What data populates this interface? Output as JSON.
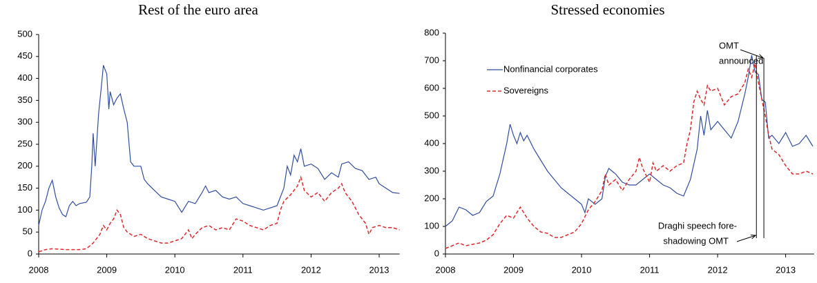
{
  "chart_data": [
    {
      "type": "line",
      "title": "Rest of the euro area",
      "xlim": [
        2008,
        2013.3
      ],
      "xticks": [
        2008,
        2009,
        2010,
        2011,
        2012,
        2013
      ],
      "ylim": [
        0,
        500
      ],
      "yticks": [
        0,
        50,
        100,
        150,
        200,
        250,
        300,
        350,
        400,
        450,
        500
      ],
      "series": [
        {
          "color": "#2f4d9e",
          "dash": false,
          "x": [
            2008.0,
            2008.05,
            2008.1,
            2008.15,
            2008.2,
            2008.25,
            2008.3,
            2008.35,
            2008.4,
            2008.45,
            2008.5,
            2008.55,
            2008.6,
            2008.7,
            2008.75,
            2008.78,
            2008.8,
            2008.83,
            2008.88,
            2008.92,
            2008.95,
            2009.0,
            2009.03,
            2009.05,
            2009.1,
            2009.15,
            2009.2,
            2009.25,
            2009.3,
            2009.35,
            2009.4,
            2009.5,
            2009.55,
            2009.6,
            2009.7,
            2009.8,
            2009.9,
            2010.0,
            2010.1,
            2010.2,
            2010.3,
            2010.4,
            2010.45,
            2010.5,
            2010.6,
            2010.7,
            2010.8,
            2010.9,
            2011.0,
            2011.1,
            2011.2,
            2011.3,
            2011.4,
            2011.5,
            2011.6,
            2011.65,
            2011.7,
            2011.75,
            2011.8,
            2011.85,
            2011.9,
            2012.0,
            2012.1,
            2012.2,
            2012.3,
            2012.4,
            2012.45,
            2012.55,
            2012.65,
            2012.75,
            2012.85,
            2012.95,
            2013.0,
            2013.1,
            2013.2,
            2013.3
          ],
          "values": [
            65,
            100,
            120,
            150,
            168,
            130,
            105,
            90,
            85,
            110,
            120,
            110,
            115,
            118,
            130,
            200,
            275,
            200,
            320,
            380,
            430,
            410,
            330,
            370,
            340,
            355,
            365,
            330,
            300,
            210,
            200,
            200,
            170,
            160,
            145,
            130,
            125,
            120,
            95,
            120,
            115,
            140,
            155,
            140,
            145,
            130,
            125,
            130,
            115,
            110,
            105,
            100,
            105,
            110,
            150,
            200,
            180,
            225,
            210,
            240,
            200,
            205,
            195,
            170,
            185,
            175,
            205,
            210,
            195,
            190,
            170,
            175,
            160,
            150,
            140,
            138
          ]
        },
        {
          "color": "#e0262a",
          "dash": true,
          "x": [
            2008.0,
            2008.1,
            2008.2,
            2008.4,
            2008.6,
            2008.7,
            2008.8,
            2008.9,
            2008.95,
            2009.0,
            2009.05,
            2009.1,
            2009.15,
            2009.2,
            2009.25,
            2009.3,
            2009.4,
            2009.5,
            2009.6,
            2009.7,
            2009.8,
            2009.9,
            2010.0,
            2010.1,
            2010.2,
            2010.25,
            2010.3,
            2010.4,
            2010.5,
            2010.6,
            2010.7,
            2010.8,
            2010.9,
            2011.0,
            2011.1,
            2011.2,
            2011.3,
            2011.4,
            2011.5,
            2011.55,
            2011.6,
            2011.7,
            2011.8,
            2011.85,
            2011.9,
            2012.0,
            2012.1,
            2012.2,
            2012.3,
            2012.4,
            2012.45,
            2012.5,
            2012.6,
            2012.7,
            2012.8,
            2012.85,
            2012.9,
            2013.0,
            2013.1,
            2013.2,
            2013.3
          ],
          "values": [
            5,
            10,
            12,
            10,
            10,
            12,
            25,
            45,
            65,
            55,
            70,
            80,
            100,
            90,
            60,
            50,
            40,
            45,
            35,
            30,
            25,
            25,
            30,
            35,
            55,
            35,
            45,
            60,
            65,
            55,
            60,
            55,
            80,
            75,
            65,
            60,
            55,
            65,
            70,
            100,
            120,
            135,
            155,
            175,
            145,
            130,
            140,
            120,
            140,
            150,
            160,
            140,
            120,
            90,
            70,
            45,
            60,
            65,
            60,
            60,
            55
          ]
        }
      ]
    },
    {
      "type": "line",
      "title": "Stressed economies",
      "xlim": [
        2008,
        2013.42
      ],
      "xticks": [
        2008,
        2009,
        2010,
        2011,
        2012,
        2013
      ],
      "ylim": [
        0,
        800
      ],
      "yticks": [
        0,
        100,
        200,
        300,
        400,
        500,
        600,
        700,
        800
      ],
      "legend": "upper left",
      "series": [
        {
          "name": "Nonfinancial corporates",
          "color": "#2f4d9e",
          "dash": false,
          "x": [
            2008.0,
            2008.1,
            2008.2,
            2008.3,
            2008.4,
            2008.5,
            2008.6,
            2008.7,
            2008.8,
            2008.9,
            2008.95,
            2009.0,
            2009.05,
            2009.1,
            2009.15,
            2009.2,
            2009.3,
            2009.4,
            2009.5,
            2009.6,
            2009.7,
            2009.8,
            2009.9,
            2010.0,
            2010.05,
            2010.1,
            2010.2,
            2010.3,
            2010.35,
            2010.4,
            2010.5,
            2010.6,
            2010.7,
            2010.8,
            2010.9,
            2011.0,
            2011.1,
            2011.2,
            2011.3,
            2011.4,
            2011.5,
            2011.6,
            2011.7,
            2011.75,
            2011.8,
            2011.85,
            2011.9,
            2012.0,
            2012.1,
            2012.2,
            2012.3,
            2012.4,
            2012.45,
            2012.5,
            2012.55,
            2012.6,
            2012.65,
            2012.7,
            2012.75,
            2012.8,
            2012.9,
            2013.0,
            2013.1,
            2013.2,
            2013.3,
            2013.4
          ],
          "values": [
            100,
            120,
            170,
            160,
            140,
            150,
            190,
            210,
            290,
            400,
            470,
            430,
            400,
            440,
            410,
            430,
            380,
            340,
            300,
            270,
            240,
            220,
            200,
            180,
            150,
            200,
            180,
            200,
            280,
            310,
            290,
            260,
            250,
            250,
            270,
            290,
            270,
            250,
            240,
            220,
            210,
            270,
            380,
            500,
            430,
            520,
            450,
            480,
            450,
            420,
            480,
            580,
            640,
            720,
            660,
            650,
            560,
            550,
            420,
            430,
            400,
            440,
            390,
            400,
            430,
            390
          ]
        },
        {
          "name": "Sovereigns",
          "color": "#e0262a",
          "dash": true,
          "x": [
            2008.0,
            2008.1,
            2008.2,
            2008.3,
            2008.4,
            2008.5,
            2008.6,
            2008.7,
            2008.8,
            2008.9,
            2009.0,
            2009.1,
            2009.15,
            2009.2,
            2009.3,
            2009.4,
            2009.5,
            2009.6,
            2009.7,
            2009.8,
            2009.9,
            2010.0,
            2010.1,
            2010.2,
            2010.3,
            2010.35,
            2010.4,
            2010.5,
            2010.6,
            2010.7,
            2010.8,
            2010.85,
            2010.9,
            2011.0,
            2011.05,
            2011.1,
            2011.2,
            2011.3,
            2011.4,
            2011.5,
            2011.55,
            2011.6,
            2011.65,
            2011.7,
            2011.75,
            2011.8,
            2011.85,
            2011.9,
            2012.0,
            2012.1,
            2012.2,
            2012.3,
            2012.4,
            2012.45,
            2012.5,
            2012.55,
            2012.6,
            2012.65,
            2012.7,
            2012.75,
            2012.8,
            2012.9,
            2013.0,
            2013.1,
            2013.2,
            2013.3,
            2013.4
          ],
          "values": [
            20,
            30,
            40,
            30,
            35,
            40,
            50,
            70,
            110,
            140,
            130,
            170,
            150,
            130,
            100,
            80,
            75,
            60,
            60,
            70,
            80,
            110,
            160,
            190,
            230,
            290,
            250,
            270,
            230,
            270,
            300,
            350,
            310,
            260,
            330,
            300,
            320,
            300,
            320,
            330,
            400,
            450,
            550,
            590,
            560,
            540,
            610,
            590,
            600,
            540,
            570,
            580,
            620,
            670,
            640,
            690,
            620,
            560,
            500,
            430,
            380,
            360,
            320,
            290,
            290,
            300,
            290
          ]
        }
      ],
      "annotations": [
        {
          "lines": [
            "OMT",
            "announced"
          ],
          "x": 2012.68
        },
        {
          "lines": [
            "Draghi speech fore-",
            "shadowing OMT"
          ],
          "x": 2012.57
        }
      ]
    }
  ]
}
